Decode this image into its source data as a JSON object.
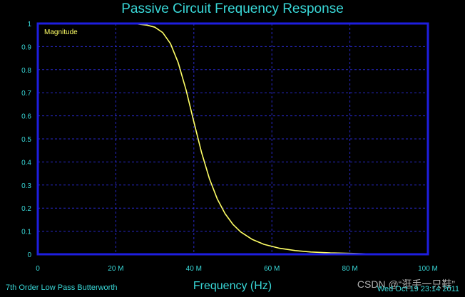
{
  "colors": {
    "background": "#000000",
    "frame": "#1e1ee0",
    "grid": "#2828c8",
    "curve": "#ffff66",
    "text": "#39d8d8",
    "legend_text": "#ffff66"
  },
  "footer": {
    "left": "7th Order Low Pass Butterworth",
    "right": "Wed Oct 19 23:14 2011"
  },
  "watermark": "CSDN @“逛手一只鞋”",
  "chart_data": {
    "type": "line",
    "title": "Passive Circuit Frequency Response",
    "xlabel": "Frequency (Hz)",
    "ylabel": "",
    "xlim": [
      0,
      100000000
    ],
    "ylim": [
      0,
      1
    ],
    "x_ticks": [
      0,
      20000000,
      40000000,
      60000000,
      80000000,
      100000000
    ],
    "x_tick_labels": [
      "0",
      "20 M",
      "40 M",
      "60 M",
      "80 M",
      "100 M"
    ],
    "y_ticks": [
      0,
      0.1,
      0.2,
      0.3,
      0.4,
      0.5,
      0.6,
      0.7,
      0.8,
      0.9,
      1
    ],
    "y_tick_labels": [
      "0",
      "0.1",
      "0.2",
      "0.3",
      "0.4",
      "0.5",
      "0.6",
      "0.7",
      "0.8",
      "0.9",
      "1"
    ],
    "grid": true,
    "legend_position": "top-left",
    "series": [
      {
        "name": "Magnitude",
        "x": [
          0,
          5000000,
          10000000,
          15000000,
          20000000,
          25000000,
          28000000,
          30000000,
          32000000,
          34000000,
          36000000,
          38000000,
          40000000,
          42000000,
          44000000,
          46000000,
          48000000,
          50000000,
          52000000,
          55000000,
          58000000,
          62000000,
          66000000,
          70000000,
          75000000,
          80000000,
          85000000,
          90000000,
          95000000,
          100000000
        ],
        "y": [
          1,
          1,
          1,
          1,
          1,
          0.999,
          0.993,
          0.984,
          0.961,
          0.913,
          0.83,
          0.712,
          0.574,
          0.44,
          0.327,
          0.24,
          0.176,
          0.13,
          0.097,
          0.064,
          0.043,
          0.026,
          0.016,
          0.01,
          0.006,
          0.004,
          0.002,
          0.001,
          0.001,
          0
        ]
      }
    ]
  }
}
